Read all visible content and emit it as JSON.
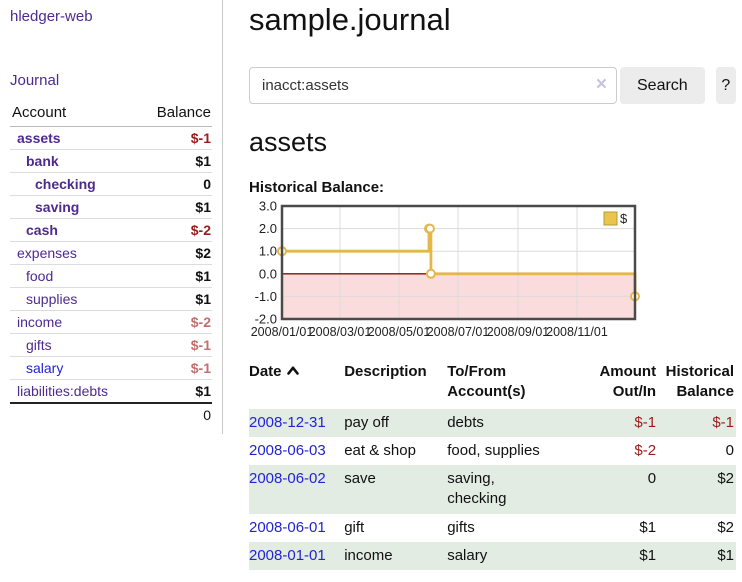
{
  "sidebar": {
    "brand": "hledger-web",
    "journal_link": "Journal",
    "table": {
      "account_header": "Account",
      "balance_header": "Balance",
      "accounts": [
        {
          "name": "assets",
          "balance": "$-1",
          "level": 1,
          "active": true
        },
        {
          "name": "bank",
          "balance": "$1",
          "level": 2,
          "active": true
        },
        {
          "name": "checking",
          "balance": "0",
          "level": 3,
          "active": true
        },
        {
          "name": "saving",
          "balance": "$1",
          "level": 3,
          "active": true
        },
        {
          "name": "cash",
          "balance": "$-2",
          "level": 2,
          "active": true
        },
        {
          "name": "expenses",
          "balance": "$2",
          "level": 1,
          "active": false
        },
        {
          "name": "food",
          "balance": "$1",
          "level": 2,
          "active": false
        },
        {
          "name": "supplies",
          "balance": "$1",
          "level": 2,
          "active": false
        },
        {
          "name": "income",
          "balance": "$-2",
          "level": 1,
          "active": false
        },
        {
          "name": "gifts",
          "balance": "$-1",
          "level": 2,
          "active": false
        },
        {
          "name": "salary",
          "balance": "$-1",
          "level": 2,
          "active": false,
          "link_color": "blue"
        },
        {
          "name": "liabilities:debts",
          "balance": "$1",
          "level": 1,
          "active": false
        }
      ],
      "total": "0"
    }
  },
  "header": {
    "title": "sample.journal"
  },
  "search": {
    "value": "inacct:assets",
    "clear_icon": "×",
    "button_label": "Search",
    "help_label": "?"
  },
  "register": {
    "heading": "assets",
    "chart_label": "Historical Balance:"
  },
  "chart_data": {
    "type": "line",
    "step": true,
    "title": "Historical Balance",
    "legend": [
      {
        "label": "$",
        "color": "#eac54e"
      }
    ],
    "legend_position": "top-right",
    "grid": true,
    "x_range": [
      "2008-01-01",
      "2008-12-31"
    ],
    "ylim": [
      -2,
      3
    ],
    "y_ticks": [
      "3.0",
      "2.0",
      "1.0",
      "0.0",
      "-1.0",
      "-2.0"
    ],
    "x_ticks": [
      "2008/01/01",
      "2008/03/01",
      "2008/05/01",
      "2008/07/01",
      "2008/09/01",
      "2008/11/01"
    ],
    "points": [
      [
        "2008-01-01",
        1.0
      ],
      [
        "2008-06-01",
        2.0
      ],
      [
        "2008-06-02",
        2.0
      ],
      [
        "2008-06-03",
        0.0
      ],
      [
        "2008-12-31",
        -1.0
      ]
    ],
    "line_color": "#e3b84a",
    "marker_fill": "#ffffff",
    "negative_region_color": "#fbdcdc",
    "zero_line_color": "#7f1010",
    "border_color": "#4a4a4a",
    "grid_color": "#dcdcdc"
  },
  "txn_table": {
    "headers": {
      "date": "Date",
      "description": "Description",
      "accounts": "To/From Account(s)",
      "amount": "Amount Out/In",
      "balance": "Historical Balance"
    },
    "rows": [
      {
        "date": "2008-12-31",
        "description": "pay off",
        "accounts": "debts",
        "amount": "$-1",
        "balance": "$-1"
      },
      {
        "date": "2008-06-03",
        "description": "eat & shop",
        "accounts": "food, supplies",
        "amount": "$-2",
        "balance": "0"
      },
      {
        "date": "2008-06-02",
        "description": "save",
        "accounts": "saving,\nchecking",
        "amount": "0",
        "balance": "$2"
      },
      {
        "date": "2008-06-01",
        "description": "gift",
        "accounts": "gifts",
        "amount": "$1",
        "balance": "$2"
      },
      {
        "date": "2008-01-01",
        "description": "income",
        "accounts": "salary",
        "amount": "$1",
        "balance": "$1"
      }
    ]
  }
}
